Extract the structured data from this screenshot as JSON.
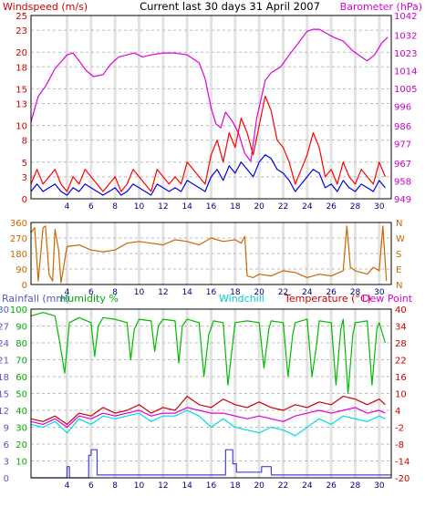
{
  "chart_data": [
    {
      "type": "line",
      "title": "Current last 30 days 31 April 2007",
      "left_label": "Windspeed (m/s)",
      "right_label": "Barometer (hPa)",
      "x_ticks": [
        4,
        6,
        8,
        10,
        12,
        14,
        16,
        18,
        20,
        22,
        24,
        26,
        28,
        30
      ],
      "x_range": [
        1,
        31
      ],
      "y_left": {
        "ticks": [
          0,
          3,
          5,
          8,
          10,
          13,
          15,
          18,
          20,
          23,
          25
        ],
        "range": [
          0,
          25
        ]
      },
      "y_right": {
        "ticks": [
          949,
          958,
          967,
          977,
          986,
          996,
          1005,
          1014,
          1023,
          1032,
          1042
        ],
        "range": [
          949,
          1042
        ]
      },
      "series": [
        {
          "name": "Barometer (hPa)",
          "axis": "right",
          "color": "#dd00dd",
          "x": [
            1,
            1.6,
            2.2,
            3,
            4,
            4.5,
            5,
            5.6,
            6.2,
            7,
            7.6,
            8.3,
            9,
            9.6,
            10.3,
            11,
            12,
            13,
            14,
            15,
            15.5,
            16,
            16.4,
            16.8,
            17.2,
            17.8,
            18.3,
            18.8,
            19.3,
            19.8,
            20.5,
            21,
            21.8,
            22.5,
            23,
            23.5,
            24,
            24.5,
            25,
            25.6,
            26.2,
            27,
            27.8,
            28.5,
            29,
            29.6,
            30.2,
            30.7
          ],
          "values": [
            988,
            1001,
            1006,
            1015,
            1022,
            1023,
            1019,
            1014,
            1011,
            1012,
            1017,
            1021,
            1022,
            1023,
            1021,
            1022,
            1023,
            1023,
            1022,
            1018,
            1010,
            995,
            987,
            985,
            993,
            988,
            982,
            972,
            968,
            990,
            1009,
            1013,
            1016,
            1022,
            1026,
            1030,
            1034,
            1035,
            1035,
            1033,
            1031,
            1029,
            1024,
            1021,
            1019,
            1022,
            1028,
            1031
          ]
        },
        {
          "name": "Wind gust (m/s)",
          "axis": "left",
          "color": "#ff0000",
          "x": [
            1,
            1.5,
            2,
            2.5,
            3,
            3.5,
            4,
            4.5,
            5,
            5.5,
            6,
            6.5,
            7,
            7.5,
            8,
            8.5,
            9,
            9.5,
            10,
            10.5,
            11,
            11.5,
            12,
            12.5,
            13,
            13.5,
            14,
            14.5,
            15,
            15.5,
            16,
            16.5,
            17,
            17.5,
            18,
            18.5,
            19,
            19.5,
            20,
            20.5,
            21,
            21.5,
            22,
            22.5,
            23,
            23.5,
            24,
            24.5,
            25,
            25.5,
            26,
            26.5,
            27,
            27.5,
            28,
            28.5,
            29,
            29.5,
            30,
            30.5
          ],
          "values": [
            2,
            4,
            2,
            3,
            4,
            2,
            1,
            3,
            2,
            4,
            3,
            2,
            1,
            2,
            3,
            1,
            2,
            4,
            3,
            2,
            1,
            4,
            3,
            2,
            3,
            2,
            5,
            4,
            3,
            2,
            6,
            8,
            5,
            9,
            7,
            11,
            9,
            6,
            10,
            14,
            12,
            8,
            7,
            5,
            2,
            4,
            6,
            9,
            7,
            3,
            4,
            2,
            5,
            3,
            2,
            4,
            3,
            2,
            5,
            3
          ]
        },
        {
          "name": "Windspeed (m/s)",
          "axis": "left",
          "color": "#0000dd",
          "x": [
            1,
            1.5,
            2,
            2.5,
            3,
            3.5,
            4,
            4.5,
            5,
            5.5,
            6,
            6.5,
            7,
            7.5,
            8,
            8.5,
            9,
            9.5,
            10,
            10.5,
            11,
            11.5,
            12,
            12.5,
            13,
            13.5,
            14,
            14.5,
            15,
            15.5,
            16,
            16.5,
            17,
            17.5,
            18,
            18.5,
            19,
            19.5,
            20,
            20.5,
            21,
            21.5,
            22,
            22.5,
            23,
            23.5,
            24,
            24.5,
            25,
            25.5,
            26,
            26.5,
            27,
            27.5,
            28,
            28.5,
            29,
            29.5,
            30,
            30.5
          ],
          "values": [
            1,
            2,
            1,
            1.5,
            2,
            1,
            0.5,
            1.5,
            1,
            2,
            1.5,
            1,
            0.5,
            1,
            1.5,
            0.5,
            1,
            2,
            1.5,
            1,
            0.5,
            2,
            1.5,
            1,
            1.5,
            1,
            2.5,
            2,
            1.5,
            1,
            3,
            4,
            2.5,
            4.5,
            3.5,
            5,
            4,
            3,
            5,
            6,
            5.5,
            4,
            3.5,
            2.5,
            1,
            2,
            3,
            4,
            3.5,
            1.5,
            2,
            1,
            2.5,
            1.5,
            1,
            2,
            1.5,
            1,
            2.5,
            1.5
          ]
        }
      ]
    },
    {
      "type": "line",
      "title": "",
      "y_left": {
        "ticks": [
          0,
          90,
          180,
          270,
          360
        ],
        "range": [
          0,
          360
        ]
      },
      "y_right_labels": [
        "N",
        "W",
        "S",
        "E",
        "N"
      ],
      "x_ticks": [
        4,
        6,
        8,
        10,
        12,
        14,
        16,
        18,
        20,
        22,
        24,
        26,
        28,
        30
      ],
      "x_range": [
        1,
        31
      ],
      "series": [
        {
          "name": "Wind direction",
          "color": "#cc6600",
          "x": [
            1,
            1.3,
            1.6,
            2,
            2.2,
            2.5,
            2.8,
            3,
            3.3,
            3.5,
            4,
            5,
            6,
            7,
            8,
            9,
            10,
            11,
            12,
            13,
            14,
            15,
            16,
            17,
            18,
            18.5,
            18.8,
            19,
            19.5,
            20,
            21,
            22,
            23,
            24,
            25,
            26,
            27,
            27.3,
            27.6,
            28,
            29,
            29.5,
            30,
            30.3,
            30.6
          ],
          "values": [
            300,
            330,
            20,
            330,
            340,
            60,
            20,
            320,
            200,
            10,
            220,
            230,
            200,
            190,
            200,
            240,
            250,
            240,
            230,
            260,
            250,
            230,
            270,
            250,
            260,
            240,
            280,
            50,
            40,
            60,
            50,
            80,
            70,
            40,
            60,
            50,
            80,
            340,
            100,
            80,
            60,
            100,
            80,
            340,
            20
          ]
        }
      ]
    },
    {
      "type": "line",
      "title": "",
      "labels": {
        "rainfall": "Rainfall (mm)",
        "humidity": "Humidity %",
        "windchill": "Windchill",
        "temperature": "Temperature (°C)",
        "dewpoint": "Dew Point"
      },
      "y_left_rain": {
        "ticks": [
          0,
          3,
          6,
          9,
          12,
          15,
          18,
          21,
          24,
          27,
          30
        ],
        "range": [
          0,
          30
        ]
      },
      "y_left_humidity": {
        "ticks": [
          10,
          20,
          30,
          40,
          50,
          60,
          70,
          80,
          90,
          100
        ],
        "range": [
          0,
          100
        ]
      },
      "y_right_temp": {
        "ticks": [
          -20,
          -14,
          -8,
          -2,
          4,
          10,
          16,
          22,
          28,
          34,
          40
        ],
        "range": [
          -20,
          40
        ]
      },
      "x_ticks": [
        4,
        6,
        8,
        10,
        12,
        14,
        16,
        18,
        20,
        22,
        24,
        26,
        28,
        30
      ],
      "x_range": [
        1,
        31
      ],
      "series": [
        {
          "name": "Humidity %",
          "axis": "humidity",
          "color": "#00bb00",
          "x": [
            1,
            2,
            3,
            3.4,
            3.8,
            4.2,
            5,
            6,
            6.3,
            6.6,
            7,
            8,
            9,
            9.3,
            9.6,
            10,
            11,
            11.3,
            11.6,
            12,
            13,
            13.3,
            13.6,
            14,
            15,
            15.4,
            15.8,
            16.2,
            17,
            17.4,
            17.8,
            18,
            19,
            20,
            20.4,
            20.8,
            21,
            22,
            22.4,
            22.8,
            23,
            24,
            24.4,
            24.8,
            25,
            26,
            26.4,
            26.8,
            27,
            27.4,
            27.8,
            28,
            29,
            29.4,
            29.8,
            30,
            30.5
          ],
          "values": [
            96,
            98,
            96,
            80,
            62,
            92,
            95,
            92,
            72,
            90,
            95,
            94,
            92,
            70,
            88,
            94,
            93,
            75,
            90,
            94,
            93,
            68,
            90,
            94,
            92,
            60,
            85,
            93,
            92,
            55,
            80,
            92,
            93,
            92,
            65,
            88,
            93,
            92,
            60,
            85,
            92,
            94,
            60,
            80,
            93,
            92,
            55,
            88,
            94,
            50,
            85,
            92,
            93,
            55,
            88,
            92,
            80
          ]
        },
        {
          "name": "Temperature (°C)",
          "axis": "temp",
          "color": "#cc0000",
          "x": [
            1,
            2,
            3,
            4,
            5,
            6,
            7,
            8,
            9,
            10,
            11,
            12,
            13,
            14,
            15,
            16,
            17,
            18,
            19,
            20,
            21,
            22,
            23,
            24,
            25,
            26,
            27,
            28,
            29,
            30,
            30.5
          ],
          "values": [
            1,
            0,
            2,
            -1,
            3,
            2,
            5,
            3,
            4,
            6,
            3,
            5,
            4,
            9,
            6,
            5,
            8,
            6,
            5,
            7,
            5,
            4,
            6,
            5,
            7,
            6,
            9,
            8,
            6,
            8,
            6
          ]
        },
        {
          "name": "Dew Point",
          "axis": "temp",
          "color": "#dd00dd",
          "x": [
            1,
            2,
            3,
            4,
            5,
            6,
            7,
            8,
            9,
            10,
            11,
            12,
            13,
            14,
            15,
            16,
            17,
            18,
            19,
            20,
            21,
            22,
            23,
            24,
            25,
            26,
            27,
            28,
            29,
            30,
            30.5
          ],
          "values": [
            0,
            -1,
            1,
            -2,
            2,
            1,
            3,
            2,
            3,
            4,
            2,
            3,
            3,
            5,
            4,
            3,
            3,
            2,
            1,
            2,
            1,
            0,
            2,
            3,
            4,
            3,
            4,
            5,
            3,
            4,
            3
          ]
        },
        {
          "name": "Windchill",
          "axis": "temp",
          "color": "#00dddd",
          "x": [
            1,
            2,
            3,
            4,
            5,
            6,
            7,
            8,
            9,
            10,
            11,
            12,
            13,
            14,
            15,
            16,
            17,
            18,
            19,
            20,
            21,
            22,
            23,
            24,
            25,
            26,
            27,
            28,
            29,
            30,
            30.5
          ],
          "values": [
            -1,
            -2,
            0,
            -4,
            1,
            -1,
            2,
            1,
            2,
            3,
            0,
            2,
            2,
            4,
            2,
            -2,
            1,
            -2,
            -3,
            -4,
            -2,
            -3,
            -5,
            -2,
            1,
            -1,
            2,
            1,
            0,
            2,
            1
          ]
        },
        {
          "name": "Rainfall (mm)",
          "axis": "rain",
          "color": "#4444dd",
          "x": [
            1,
            4,
            4.01,
            4.2,
            4.21,
            5.8,
            5.81,
            6.0,
            6.01,
            6.5,
            6.51,
            7,
            17,
            17.2,
            17.21,
            17.8,
            17.81,
            18.1,
            18.11,
            19,
            20,
            20.2,
            20.21,
            21,
            21.01,
            31
          ],
          "values": [
            0,
            0,
            2,
            2,
            0,
            0,
            4,
            4,
            5,
            5,
            0.5,
            0.5,
            0.5,
            0.5,
            5,
            5,
            2.5,
            2.5,
            1,
            1,
            1,
            1,
            2,
            2,
            0.5,
            0.5
          ]
        }
      ]
    }
  ]
}
